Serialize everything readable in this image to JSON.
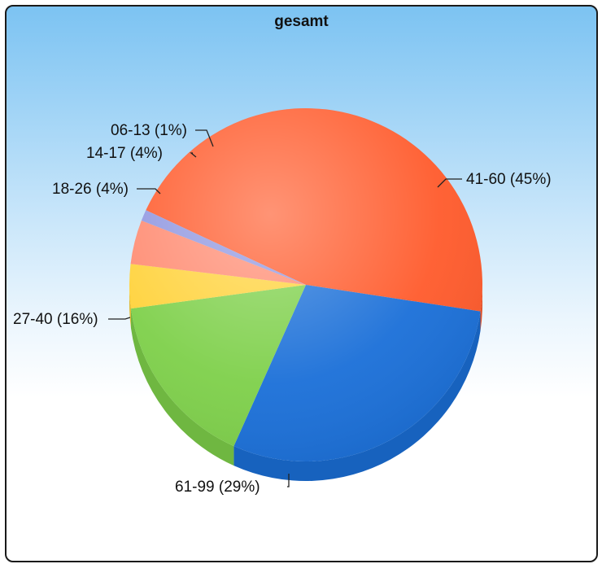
{
  "chart_data": {
    "type": "pie",
    "title": "gesamt",
    "slices": [
      {
        "label": "41-60 (45%)",
        "category": "41-60",
        "percent": 45,
        "color": "#ff5a2b"
      },
      {
        "label": "61-99 (29%)",
        "category": "61-99",
        "percent": 29,
        "color": "#1a6fd8"
      },
      {
        "label": "27-40 (16%)",
        "category": "27-40",
        "percent": 16,
        "color": "#7ed04a"
      },
      {
        "label": "18-26 (4%)",
        "category": "18-26",
        "percent": 4,
        "color": "#ffd23a"
      },
      {
        "label": "14-17 (4%)",
        "category": "14-17",
        "percent": 4,
        "color": "#ff8a70"
      },
      {
        "label": "06-13 (1%)",
        "category": "06-13",
        "percent": 1,
        "color": "#8f96e0"
      }
    ],
    "legend": "none",
    "style": "3d-tilted"
  }
}
